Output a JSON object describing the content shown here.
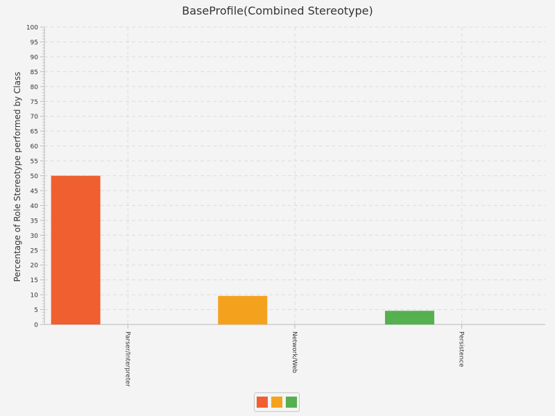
{
  "chart_data": {
    "type": "bar",
    "title": "BaseProfile(Combined Stereotype)",
    "xlabel": "",
    "ylabel": "Percentage of Role Stereotype performed by Class",
    "categories": [
      "Parser/Interpreter",
      "Network/Web",
      "Persistence"
    ],
    "values": [
      50,
      9.6,
      4.6
    ],
    "colors": [
      "#ef5f2f",
      "#f4a21e",
      "#55b04f"
    ],
    "ylim": [
      0,
      100
    ],
    "ytick_step": 5,
    "grid": true,
    "legend": "bottom-center"
  }
}
